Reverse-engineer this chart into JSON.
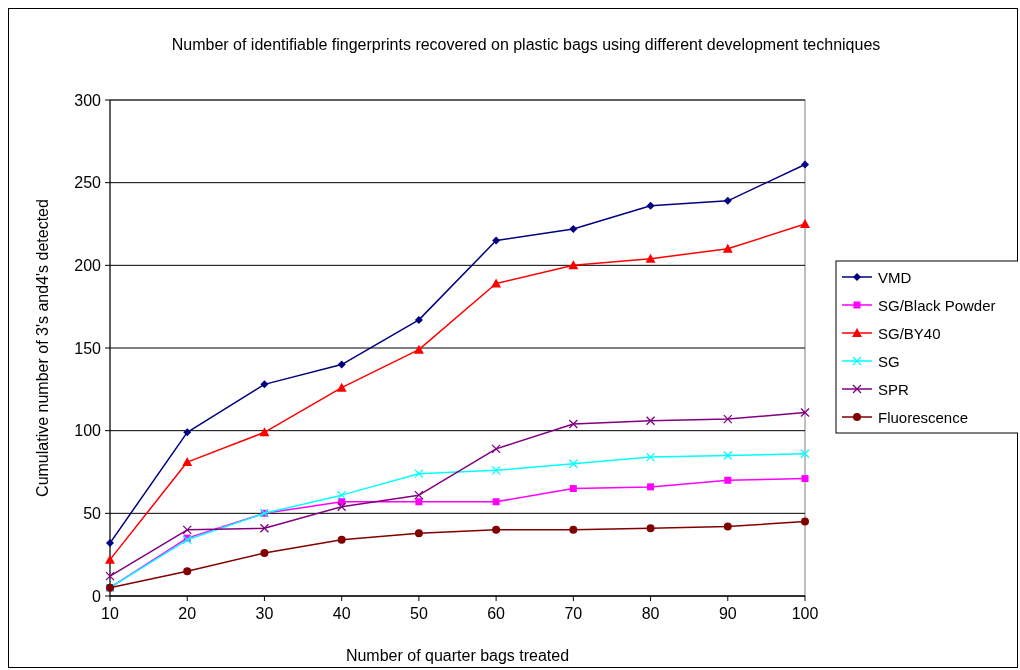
{
  "chart_data": {
    "type": "line",
    "title": "Number of identifiable fingerprints recovered on plastic bags using different development techniques",
    "xlabel": "Number of quarter bags treated",
    "ylabel": "Cumulative number of 3's and4's detected",
    "x": [
      10,
      20,
      30,
      40,
      50,
      60,
      70,
      80,
      90,
      100
    ],
    "xlim": [
      10,
      100
    ],
    "xticks": [
      10,
      20,
      30,
      40,
      50,
      60,
      70,
      80,
      90,
      100
    ],
    "ylim": [
      0,
      300
    ],
    "yticks": [
      0,
      50,
      100,
      150,
      200,
      250,
      300
    ],
    "grid": "y",
    "legend": "right",
    "line_style": "solid",
    "series": [
      {
        "name": "VMD",
        "color": "#000080",
        "marker": "diamond",
        "values": [
          32,
          99,
          128,
          140,
          167,
          215,
          222,
          236,
          239,
          261
        ]
      },
      {
        "name": "SG/Black Powder",
        "color": "#ff00ff",
        "marker": "square",
        "values": [
          5,
          35,
          50,
          57,
          57,
          57,
          65,
          66,
          70,
          71
        ]
      },
      {
        "name": "SG/BY40",
        "color": "#ff0000",
        "marker": "triangle",
        "values": [
          22,
          81,
          99,
          126,
          149,
          189,
          200,
          204,
          210,
          225
        ]
      },
      {
        "name": "SG",
        "color": "#00ffff",
        "marker": "cross",
        "values": [
          5,
          34,
          50,
          61,
          74,
          76,
          80,
          84,
          85,
          86
        ]
      },
      {
        "name": "SPR",
        "color": "#800080",
        "marker": "cross",
        "values": [
          12,
          40,
          41,
          54,
          61,
          89,
          104,
          106,
          107,
          111
        ]
      },
      {
        "name": "Fluorescence",
        "color": "#800000",
        "marker": "circle",
        "values": [
          5,
          15,
          26,
          34,
          38,
          40,
          40,
          41,
          42,
          45
        ]
      }
    ]
  }
}
